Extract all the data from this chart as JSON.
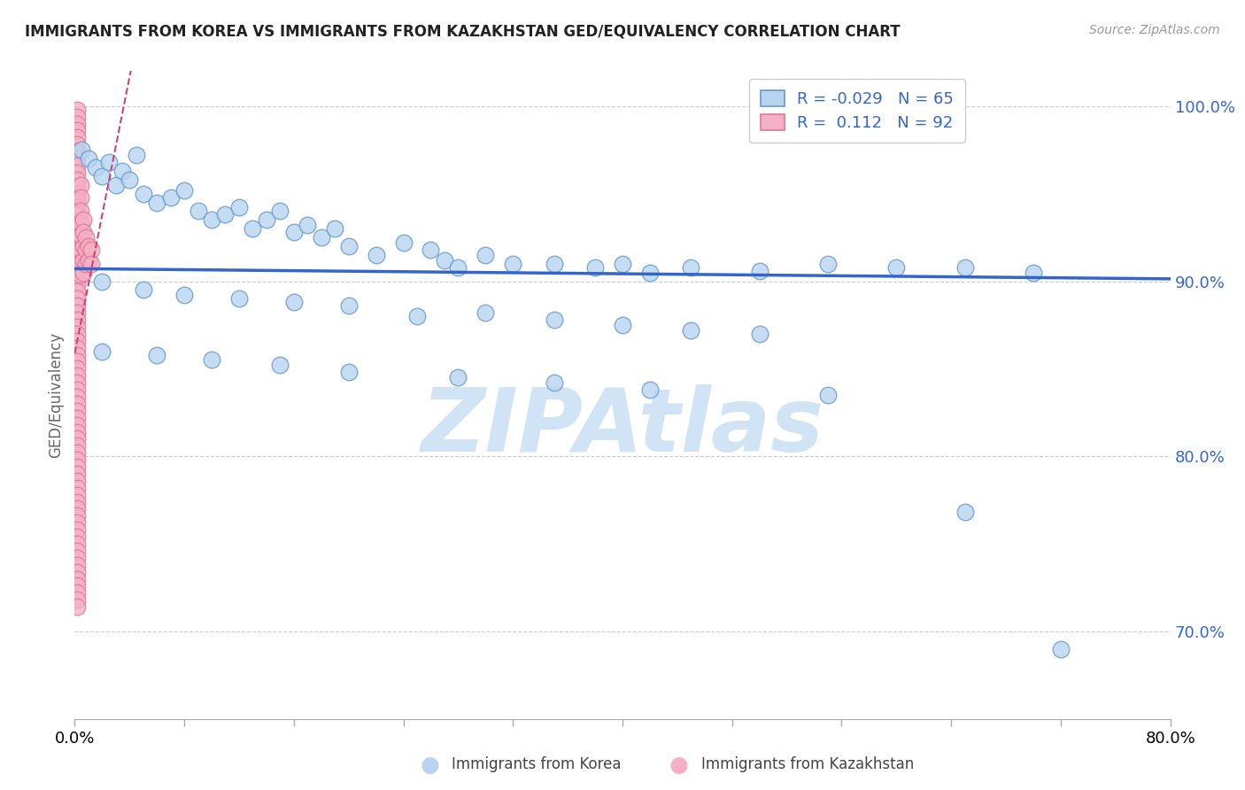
{
  "title": "IMMIGRANTS FROM KOREA VS IMMIGRANTS FROM KAZAKHSTAN GED/EQUIVALENCY CORRELATION CHART",
  "source": "Source: ZipAtlas.com",
  "ylabel": "GED/Equivalency",
  "ytick_vals": [
    0.7,
    0.8,
    0.9,
    1.0
  ],
  "ytick_labels": [
    "70.0%",
    "80.0%",
    "90.0%",
    "100.0%"
  ],
  "legend_korea": "Immigrants from Korea",
  "legend_kazakhstan": "Immigrants from Kazakhstan",
  "r_korea": "-0.029",
  "n_korea": "65",
  "r_kazakhstan": "0.112",
  "n_kazakhstan": "92",
  "korea_color": "#b8d4f0",
  "korea_edge": "#6699cc",
  "kazakhstan_color": "#f5b0c5",
  "kazakhstan_edge": "#dd7799",
  "trendline_korea_color": "#3366cc",
  "trendline_kazakhstan_color": "#cc4477",
  "r_text_color": "#3366cc",
  "n_text_color": "#3366cc",
  "background_color": "#ffffff",
  "grid_color": "#cccccc",
  "korea_x": [
    0.005,
    0.01,
    0.015,
    0.02,
    0.025,
    0.03,
    0.035,
    0.04,
    0.045,
    0.05,
    0.06,
    0.07,
    0.08,
    0.09,
    0.1,
    0.11,
    0.12,
    0.13,
    0.14,
    0.15,
    0.16,
    0.17,
    0.18,
    0.19,
    0.2,
    0.22,
    0.24,
    0.26,
    0.27,
    0.28,
    0.3,
    0.32,
    0.35,
    0.38,
    0.4,
    0.42,
    0.45,
    0.5,
    0.55,
    0.6,
    0.65,
    0.7,
    0.02,
    0.05,
    0.08,
    0.12,
    0.16,
    0.2,
    0.25,
    0.3,
    0.35,
    0.4,
    0.45,
    0.5,
    0.02,
    0.06,
    0.1,
    0.15,
    0.2,
    0.28,
    0.35,
    0.42,
    0.55,
    0.65,
    0.72
  ],
  "korea_y": [
    0.975,
    0.97,
    0.965,
    0.96,
    0.968,
    0.955,
    0.963,
    0.958,
    0.972,
    0.95,
    0.945,
    0.948,
    0.952,
    0.94,
    0.935,
    0.938,
    0.942,
    0.93,
    0.935,
    0.94,
    0.928,
    0.932,
    0.925,
    0.93,
    0.92,
    0.915,
    0.922,
    0.918,
    0.912,
    0.908,
    0.915,
    0.91,
    0.91,
    0.908,
    0.91,
    0.905,
    0.908,
    0.906,
    0.91,
    0.908,
    0.908,
    0.905,
    0.9,
    0.895,
    0.892,
    0.89,
    0.888,
    0.886,
    0.88,
    0.882,
    0.878,
    0.875,
    0.872,
    0.87,
    0.86,
    0.858,
    0.855,
    0.852,
    0.848,
    0.845,
    0.842,
    0.838,
    0.835,
    0.768,
    0.69
  ],
  "kazakhstan_x": [
    0.002,
    0.002,
    0.002,
    0.002,
    0.002,
    0.002,
    0.002,
    0.002,
    0.002,
    0.002,
    0.002,
    0.002,
    0.002,
    0.002,
    0.002,
    0.002,
    0.002,
    0.002,
    0.002,
    0.002,
    0.002,
    0.002,
    0.002,
    0.002,
    0.002,
    0.002,
    0.002,
    0.002,
    0.002,
    0.002,
    0.004,
    0.004,
    0.004,
    0.004,
    0.004,
    0.004,
    0.004,
    0.004,
    0.006,
    0.006,
    0.006,
    0.006,
    0.006,
    0.008,
    0.008,
    0.008,
    0.01,
    0.01,
    0.012,
    0.012,
    0.002,
    0.002,
    0.002,
    0.002,
    0.002,
    0.002,
    0.002,
    0.002,
    0.002,
    0.002,
    0.002,
    0.002,
    0.002,
    0.002,
    0.002,
    0.002,
    0.002,
    0.002,
    0.002,
    0.002,
    0.002,
    0.002,
    0.002,
    0.002,
    0.002,
    0.002,
    0.002,
    0.002,
    0.002,
    0.002,
    0.002,
    0.002,
    0.002,
    0.002,
    0.002,
    0.002,
    0.002,
    0.002,
    0.002,
    0.002,
    0.002,
    0.002
  ],
  "kazakhstan_y": [
    0.998,
    0.994,
    0.99,
    0.986,
    0.982,
    0.978,
    0.974,
    0.97,
    0.966,
    0.962,
    0.958,
    0.954,
    0.95,
    0.946,
    0.942,
    0.938,
    0.934,
    0.93,
    0.926,
    0.922,
    0.918,
    0.914,
    0.91,
    0.906,
    0.902,
    0.898,
    0.894,
    0.89,
    0.886,
    0.882,
    0.955,
    0.948,
    0.94,
    0.933,
    0.926,
    0.918,
    0.911,
    0.904,
    0.935,
    0.928,
    0.92,
    0.912,
    0.905,
    0.925,
    0.918,
    0.91,
    0.92,
    0.912,
    0.918,
    0.91,
    0.878,
    0.874,
    0.87,
    0.866,
    0.862,
    0.858,
    0.854,
    0.85,
    0.846,
    0.842,
    0.838,
    0.834,
    0.83,
    0.826,
    0.822,
    0.818,
    0.814,
    0.81,
    0.806,
    0.802,
    0.798,
    0.794,
    0.79,
    0.786,
    0.782,
    0.778,
    0.774,
    0.77,
    0.766,
    0.762,
    0.758,
    0.754,
    0.75,
    0.746,
    0.742,
    0.738,
    0.734,
    0.73,
    0.726,
    0.722,
    0.718,
    0.714
  ],
  "xlim": [
    0.0,
    0.8
  ],
  "ylim": [
    0.65,
    1.02
  ],
  "watermark": "ZIPAtlas",
  "watermark_color": "#d0e4f5"
}
